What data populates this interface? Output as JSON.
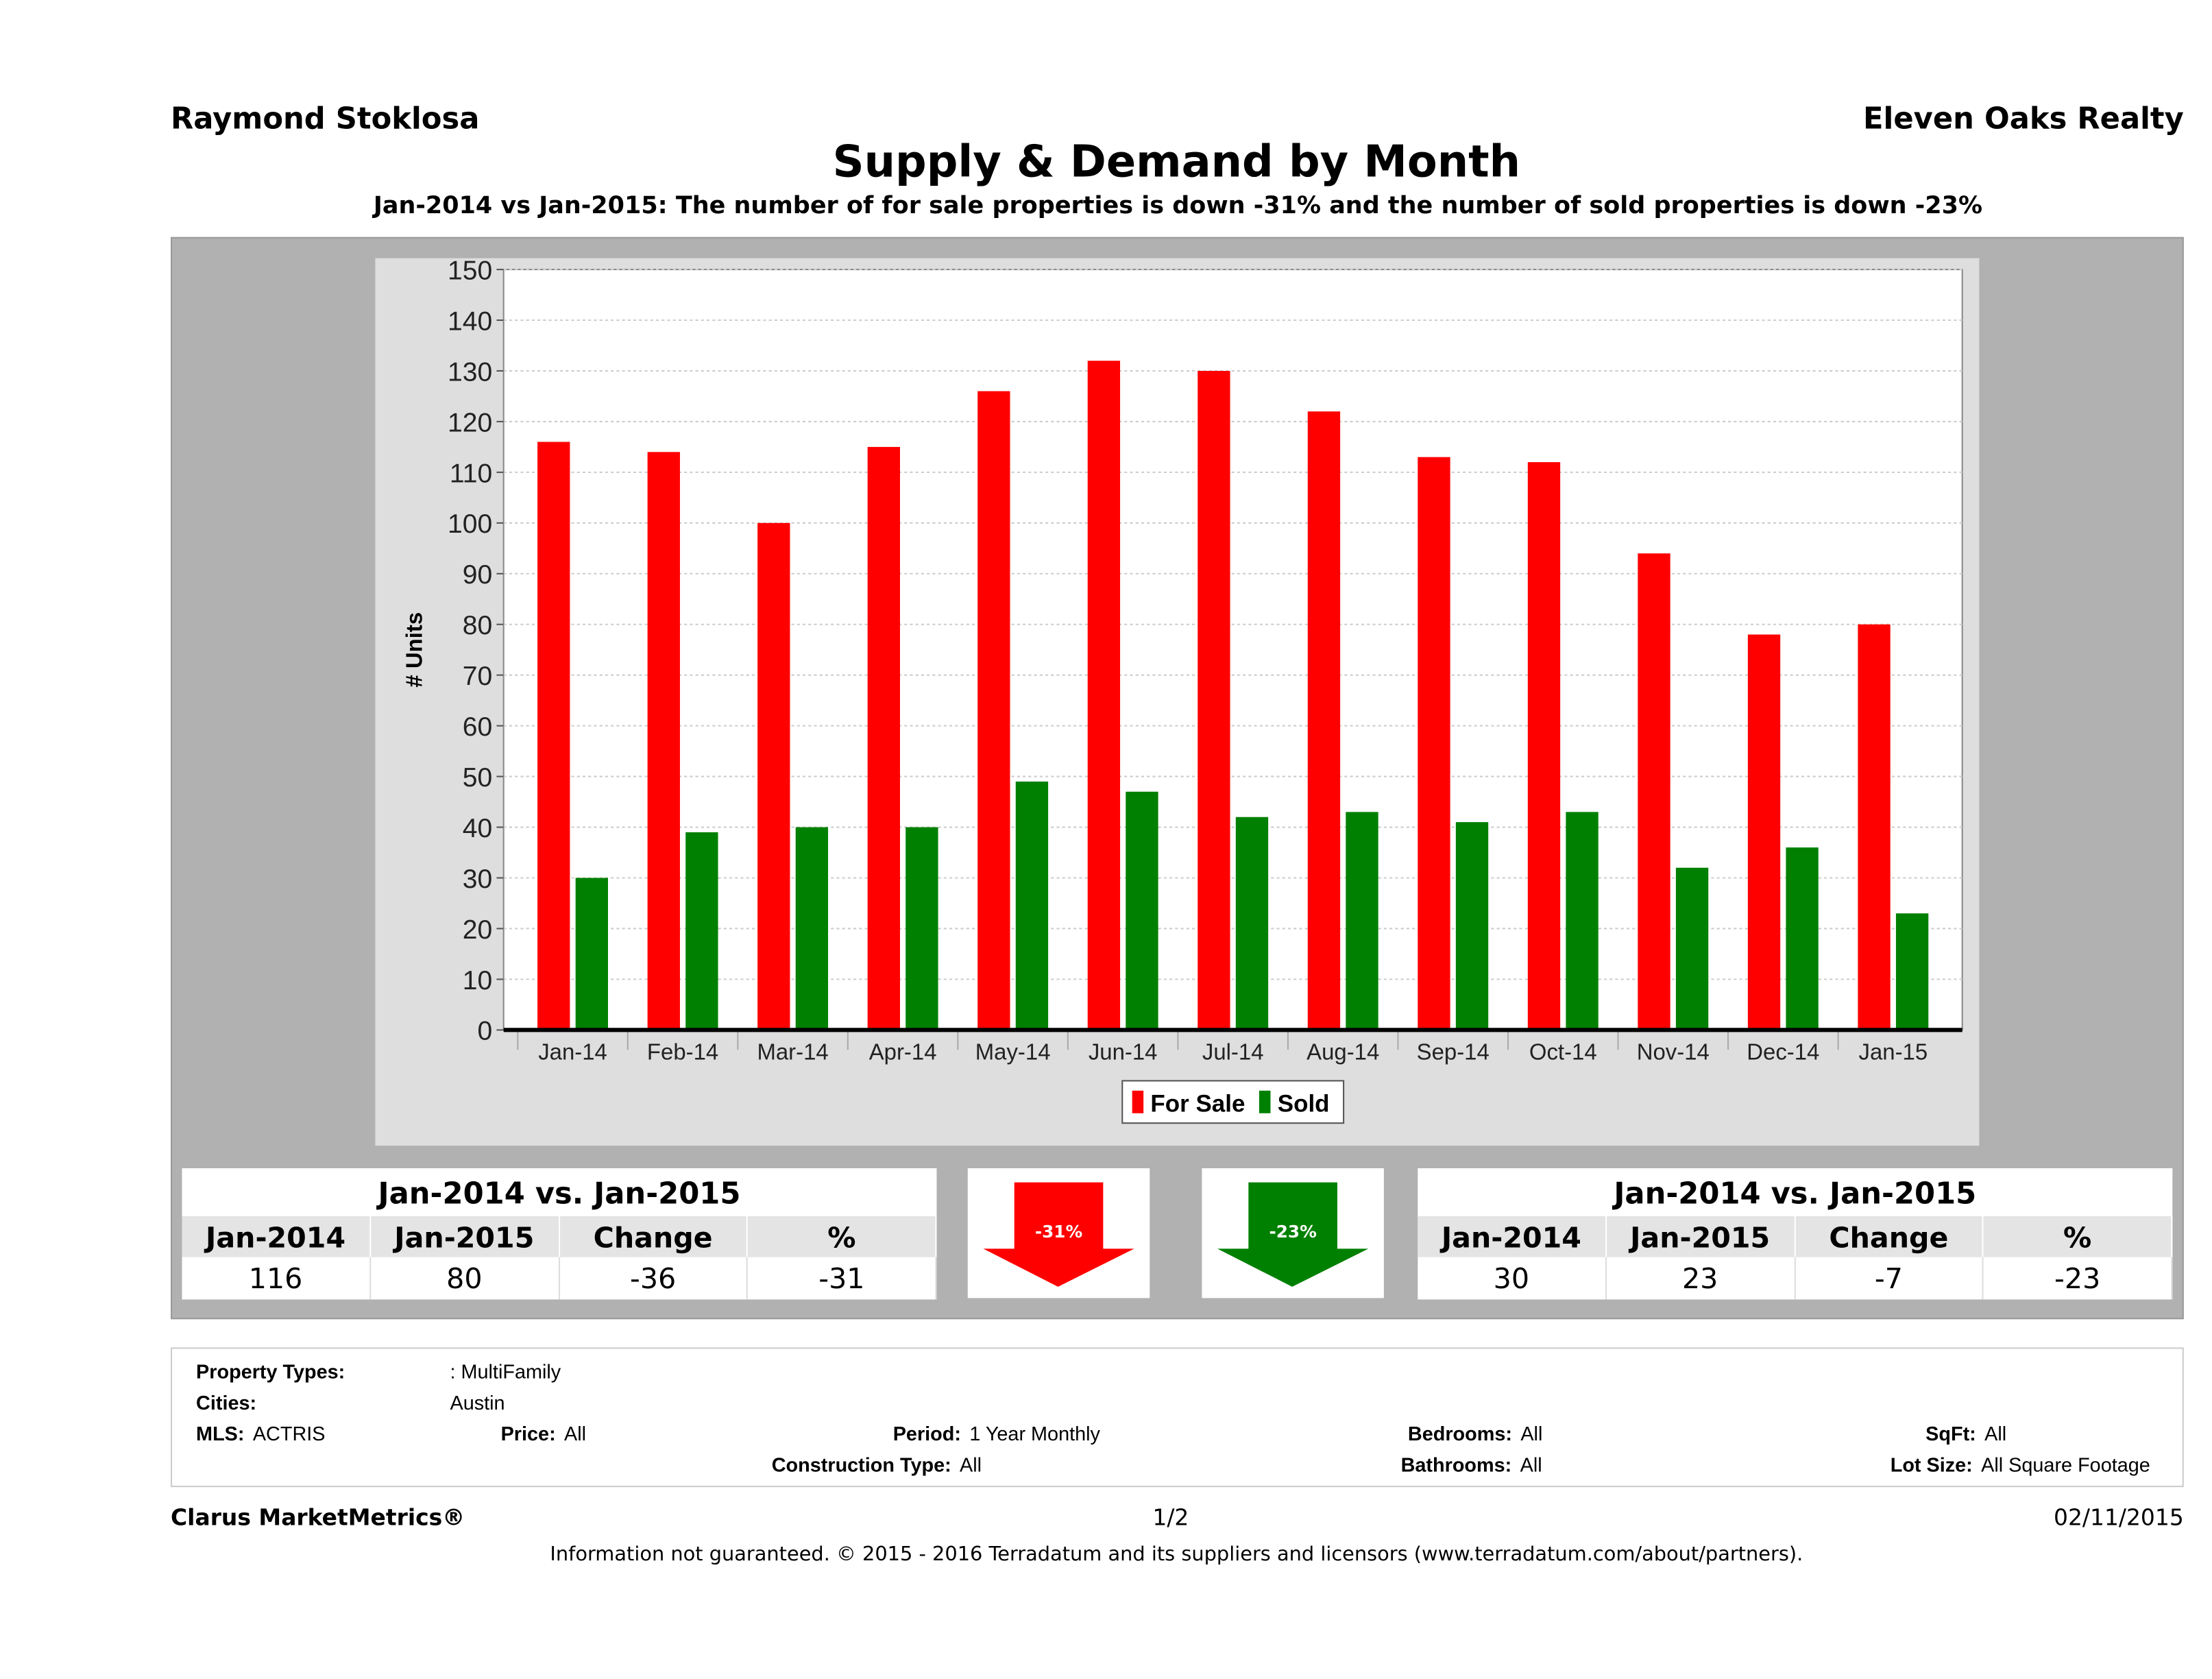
{
  "header": {
    "agent": "Raymond Stoklosa",
    "brokerage": "Eleven Oaks Realty"
  },
  "title": "Supply & Demand by Month",
  "subtitle": "Jan-2014 vs Jan-2015: The number of for sale properties is down -31% and the number of sold properties is down -23%",
  "chart_data": {
    "type": "bar",
    "ylabel": "# Units",
    "xlabel": "",
    "ylim": [
      0,
      150
    ],
    "yticks": [
      0,
      10,
      20,
      30,
      40,
      50,
      60,
      70,
      80,
      90,
      100,
      110,
      120,
      130,
      140,
      150
    ],
    "grid": true,
    "legend_placement": "bottom",
    "categories": [
      "Jan-14",
      "Feb-14",
      "Mar-14",
      "Apr-14",
      "May-14",
      "Jun-14",
      "Jul-14",
      "Aug-14",
      "Sep-14",
      "Oct-14",
      "Nov-14",
      "Dec-14",
      "Jan-15"
    ],
    "series": [
      {
        "name": "For Sale",
        "color": "#ff0000",
        "values": [
          116,
          114,
          100,
          115,
          126,
          132,
          130,
          122,
          113,
          112,
          94,
          78,
          80
        ]
      },
      {
        "name": "Sold",
        "color": "#008000",
        "values": [
          30,
          39,
          40,
          40,
          49,
          47,
          42,
          43,
          41,
          43,
          32,
          36,
          23
        ]
      }
    ]
  },
  "summary": {
    "for_sale": {
      "caption": "Jan-2014 vs. Jan-2015",
      "headers": [
        "Jan-2014",
        "Jan-2015",
        "Change",
        "%"
      ],
      "values": [
        "116",
        "80",
        "-36",
        "-31"
      ],
      "arrow_label": "-31%",
      "arrow_color": "#ff0000"
    },
    "sold": {
      "caption": "Jan-2014 vs. Jan-2015",
      "headers": [
        "Jan-2014",
        "Jan-2015",
        "Change",
        "%"
      ],
      "values": [
        "30",
        "23",
        "-7",
        "-23"
      ],
      "arrow_label": "-23%",
      "arrow_color": "#008000"
    }
  },
  "info": {
    "property_types_label": "Property Types:",
    "property_types": ": MultiFamily",
    "cities_label": "Cities:",
    "cities": "Austin",
    "mls_label": "MLS:",
    "mls": "ACTRIS",
    "price_label": "Price:",
    "price": "All",
    "period_label": "Period:",
    "period": "1 Year Monthly",
    "construction_label": "Construction Type:",
    "construction": "All",
    "bedrooms_label": "Bedrooms:",
    "bedrooms": "All",
    "bathrooms_label": "Bathrooms:",
    "bathrooms": "All",
    "sqft_label": "SqFt:",
    "sqft": "All",
    "lot_label": "Lot Size:",
    "lot": "All Square Footage"
  },
  "footer": {
    "brand": "Clarus MarketMetrics®",
    "page": "1/2",
    "date": "02/11/2015",
    "disclaimer": "Information not guaranteed. © 2015 - 2016 Terradatum and its suppliers and licensors (www.terradatum.com/about/partners)."
  }
}
